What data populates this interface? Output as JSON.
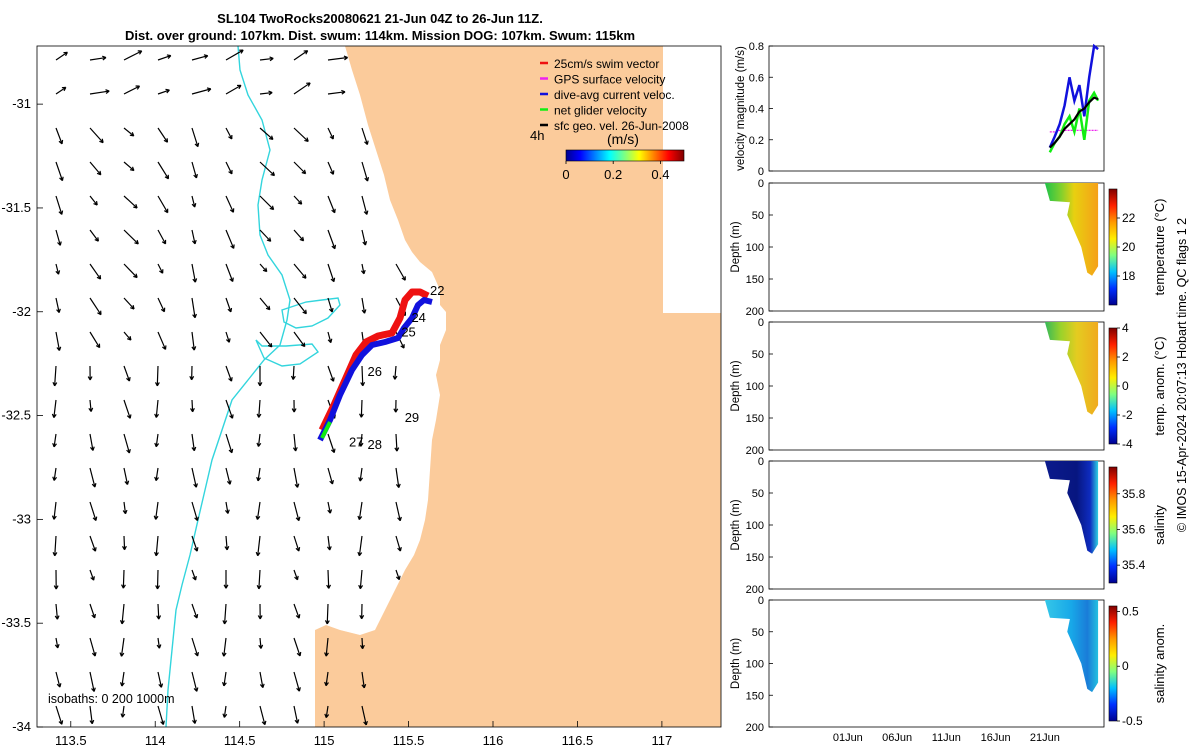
{
  "title_line1": "SL104 TwoRocks20080621 21-Jun 04Z to 26-Jun 11Z.",
  "title_line2": "Dist. over ground: 107km. Dist. swum: 114km. Mission DOG: 107km. Swum: 115km",
  "copyright": "© IMOS 15-Apr-2024 20:07:13 Hobart time. QC flags 1  2",
  "colors": {
    "land": "#fbcb9b",
    "isobath": "#33d5dd",
    "swim": "#ee1111",
    "gps": "#ee22ee",
    "dive": "#1111dd",
    "net": "#11ee11",
    "geo": "#000000"
  },
  "map": {
    "lon_ticks": [
      "113.5",
      "114",
      "114.5",
      "115",
      "115.5",
      "116",
      "116.5",
      "117"
    ],
    "lat_ticks": [
      "-31",
      "-31.5",
      "-32",
      "-32.5",
      "-33",
      "-33.5",
      "-34"
    ],
    "lon_range": [
      113.3,
      117.35
    ],
    "lat_range": [
      -30.72,
      -34.0
    ],
    "isobath_label": "isobaths: 0   200  1000m",
    "time_label": "4h",
    "colorbar": {
      "unit": "(m/s)",
      "ticks": [
        "0",
        "0.2",
        "0.4"
      ],
      "range": [
        0,
        0.5
      ]
    },
    "day_labels": [
      {
        "text": "22",
        "lon": 115.67,
        "lat": -31.92
      },
      {
        "text": "24",
        "lon": 115.56,
        "lat": -32.05
      },
      {
        "text": "25",
        "lon": 115.5,
        "lat": -32.12
      },
      {
        "text": "26",
        "lon": 115.3,
        "lat": -32.31
      },
      {
        "text": "27",
        "lon": 115.19,
        "lat": -32.65
      },
      {
        "text": "28",
        "lon": 115.3,
        "lat": -32.66
      },
      {
        "text": "29",
        "lon": 115.52,
        "lat": -32.53
      }
    ],
    "legend": [
      "25cm/s swim vector",
      "GPS surface velocity",
      "dive-avg current veloc.",
      "net glider velocity",
      "sfc geo. vel. 26-Jun-2008"
    ]
  },
  "panels": [
    {
      "ylabel": "velocity magnitude (m/s)",
      "yticks": [
        "0",
        "0.2",
        "0.4",
        "0.6",
        "0.8"
      ],
      "yrange": [
        0,
        0.8
      ]
    },
    {
      "ylabel": "Depth (m)",
      "yticks": [
        "0",
        "50",
        "100",
        "150",
        "200"
      ],
      "cbar_label": "temperature (°C)",
      "cbar_ticks": [
        "22",
        "20",
        "18"
      ]
    },
    {
      "ylabel": "Depth (m)",
      "yticks": [
        "0",
        "50",
        "100",
        "150",
        "200"
      ],
      "cbar_label": "temp. anom. (°C)",
      "cbar_ticks": [
        "4",
        "2",
        "0",
        "-2",
        "-4"
      ]
    },
    {
      "ylabel": "Depth (m)",
      "yticks": [
        "0",
        "50",
        "100",
        "150",
        "200"
      ],
      "cbar_label": "salinity",
      "cbar_ticks": [
        "35.8",
        "35.6",
        "35.4"
      ]
    },
    {
      "ylabel": "Depth (m)",
      "yticks": [
        "0",
        "50",
        "100",
        "150",
        "200"
      ],
      "cbar_label": "salinity anom.",
      "cbar_ticks": [
        "0.5",
        "0",
        "-0.5"
      ]
    }
  ],
  "time_ticks": [
    "01Jun",
    "06Jun",
    "11Jun",
    "16Jun",
    "21Jun"
  ],
  "chart_data": {
    "type": "line",
    "x_unit": "day of 2008",
    "x_range": [
      "2008-05-24",
      "2008-06-27"
    ],
    "x": [
      21.5,
      22.0,
      22.5,
      23.0,
      23.5,
      24.0,
      24.5,
      25.0,
      25.5,
      26.0,
      26.4
    ],
    "series": [
      {
        "name": "GPS surface velocity",
        "values": [
          0.25,
          0.25,
          0.26,
          0.26,
          0.26,
          0.26,
          0.26,
          0.26,
          0.26,
          0.26,
          0.26
        ]
      },
      {
        "name": "dive-avg current veloc.",
        "values": [
          0.15,
          0.22,
          0.3,
          0.42,
          0.6,
          0.45,
          0.55,
          0.35,
          0.6,
          0.8,
          0.78
        ]
      },
      {
        "name": "net glider velocity",
        "values": [
          0.12,
          0.18,
          0.22,
          0.3,
          0.35,
          0.25,
          0.4,
          0.2,
          0.45,
          0.5,
          0.45
        ]
      },
      {
        "name": "sfc geo. vel. 26-Jun-2008",
        "values": [
          0.15,
          0.18,
          0.22,
          0.27,
          0.3,
          0.33,
          0.38,
          0.4,
          0.44,
          0.47,
          0.46
        ]
      }
    ]
  }
}
